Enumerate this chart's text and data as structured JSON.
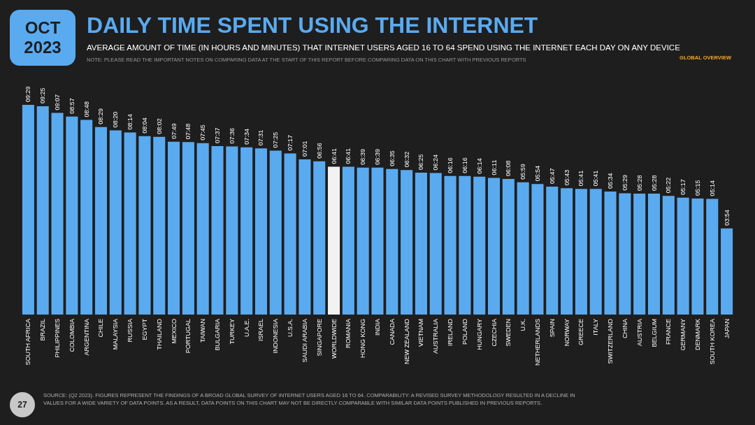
{
  "chart_data": {
    "type": "bar",
    "title": "DAILY TIME SPENT USING THE INTERNET",
    "subtitle": "AVERAGE AMOUNT OF TIME (IN HOURS AND MINUTES) THAT INTERNET USERS AGED 16 TO 64 SPEND USING THE INTERNET EACH DAY ON ANY DEVICE",
    "annotations": [
      "OCT 2023",
      "GLOBAL OVERVIEW",
      "NOTE: PLEASE READ THE IMPORTANT NOTES ON COMPARING DATA AT THE START OF THIS REPORT BEFORE COMPARING DATA ON THIS CHART WITH PREVIOUS REPORTS",
      "SOURCE: (Q2 2023). FIGURES REPRESENT THE FINDINGS OF A BROAD GLOBAL SURVEY OF INTERNET USERS AGED 16 TO 64. COMPARABILITY: A REVISED SURVEY METHODOLOGY RESULTED IN A DECLINE IN VALUES FOR A WIDE VARIETY OF DATA POINTS. AS A RESULT, DATA POINTS ON THIS CHART MAY NOT BE DIRECTLY COMPARABLE WITH SIMILAR DATA POINTS PUBLISHED IN PREVIOUS REPORTS.",
      "27"
    ],
    "categories": [
      "SOUTH AFRICA",
      "BRAZIL",
      "PHILIPPINES",
      "COLOMBIA",
      "ARGENTINA",
      "CHILE",
      "MALAYSIA",
      "RUSSIA",
      "EGYPT",
      "THAILAND",
      "MEXICO",
      "PORTUGAL",
      "TAIWAN",
      "BULGARIA",
      "TURKEY",
      "U.A.E.",
      "ISRAEL",
      "INDONESIA",
      "U.S.A.",
      "SAUDI ARABIA",
      "SINGAPORE",
      "WORLDWIDE",
      "ROMANIA",
      "HONG KONG",
      "INDIA",
      "CANADA",
      "NEW ZEALAND",
      "VIETNAM",
      "AUSTRALIA",
      "IRELAND",
      "POLAND",
      "HUNGARY",
      "CZECHIA",
      "SWEDEN",
      "U.K.",
      "NETHERLANDS",
      "SPAIN",
      "NORWAY",
      "GREECE",
      "ITALY",
      "SWITZERLAND",
      "CHINA",
      "AUSTRIA",
      "BELGIUM",
      "FRANCE",
      "GERMANY",
      "DENMARK",
      "SOUTH KOREA",
      "JAPAN"
    ],
    "values": [
      569,
      565,
      547,
      537,
      528,
      509,
      500,
      494,
      484,
      482,
      469,
      468,
      465,
      457,
      456,
      454,
      451,
      445,
      437,
      421,
      416,
      401,
      401,
      399,
      399,
      395,
      392,
      385,
      384,
      376,
      376,
      374,
      371,
      368,
      359,
      354,
      347,
      343,
      341,
      341,
      334,
      329,
      328,
      328,
      322,
      317,
      315,
      314,
      234
    ],
    "value_labels": [
      "09:29",
      "09:25",
      "09:07",
      "08:57",
      "08:48",
      "08:29",
      "08:20",
      "08:14",
      "08:04",
      "08:02",
      "07:49",
      "07:48",
      "07:45",
      "07:37",
      "07:36",
      "07:34",
      "07:31",
      "07:25",
      "07:17",
      "07:01",
      "06:56",
      "06:41",
      "06:41",
      "06:39",
      "06:39",
      "06:35",
      "06:32",
      "06:25",
      "06:24",
      "06:16",
      "06:16",
      "06:14",
      "06:11",
      "06:08",
      "05:59",
      "05:54",
      "05:47",
      "05:43",
      "05:41",
      "05:41",
      "05:34",
      "05:29",
      "05:28",
      "05:28",
      "05:22",
      "05:17",
      "05:15",
      "05:14",
      "03:54"
    ],
    "colors": [
      "#5aaaf0",
      "#5aaaf0",
      "#5aaaf0",
      "#5aaaf0",
      "#5aaaf0",
      "#5aaaf0",
      "#5aaaf0",
      "#5aaaf0",
      "#5aaaf0",
      "#5aaaf0",
      "#5aaaf0",
      "#5aaaf0",
      "#5aaaf0",
      "#5aaaf0",
      "#5aaaf0",
      "#5aaaf0",
      "#5aaaf0",
      "#5aaaf0",
      "#5aaaf0",
      "#5aaaf0",
      "#5aaaf0",
      "#f2f2f2",
      "#5aaaf0",
      "#5aaaf0",
      "#5aaaf0",
      "#5aaaf0",
      "#5aaaf0",
      "#5aaaf0",
      "#5aaaf0",
      "#5aaaf0",
      "#5aaaf0",
      "#5aaaf0",
      "#5aaaf0",
      "#5aaaf0",
      "#5aaaf0",
      "#5aaaf0",
      "#5aaaf0",
      "#5aaaf0",
      "#5aaaf0",
      "#5aaaf0",
      "#5aaaf0",
      "#5aaaf0",
      "#5aaaf0",
      "#5aaaf0",
      "#5aaaf0",
      "#5aaaf0",
      "#5aaaf0",
      "#5aaaf0",
      "#5aaaf0"
    ]
  }
}
